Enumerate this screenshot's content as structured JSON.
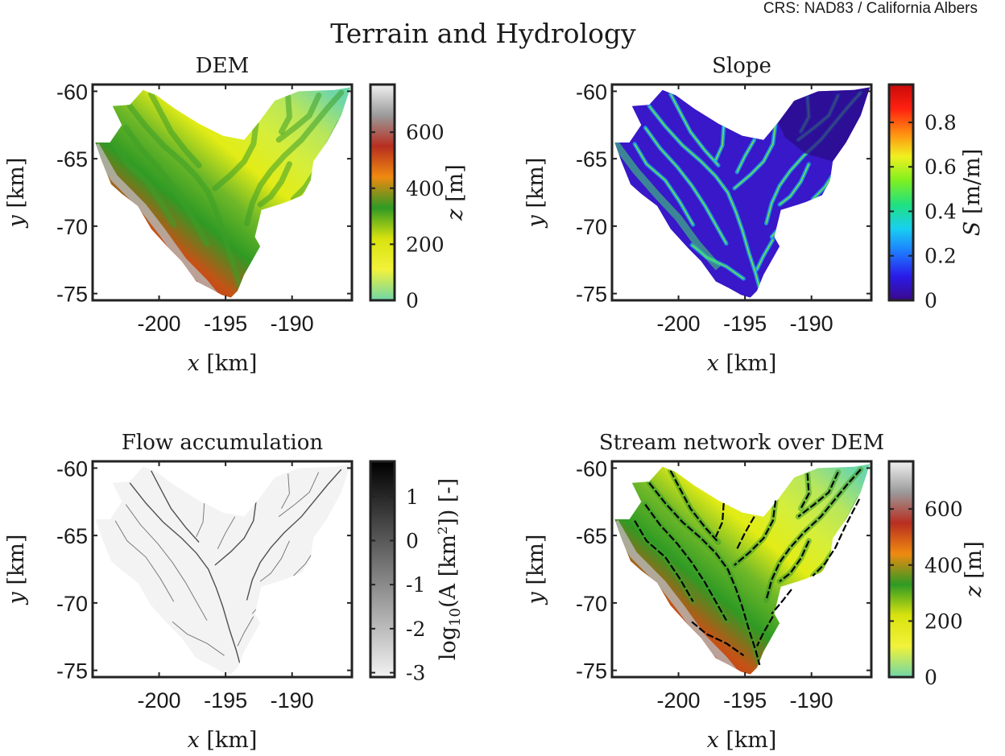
{
  "figure": {
    "crs_note": "CRS: NAD83 / California Albers",
    "suptitle": "Terrain and Hydrology"
  },
  "axes_labels": {
    "x_var": "x",
    "x_unit": "[km]",
    "y_var": "y",
    "y_unit": "[km]"
  },
  "colors": {
    "dem_colormap": [
      "#6fd6a8",
      "#f2f23a",
      "#d8e20e",
      "#2f9a24",
      "#ef8a10",
      "#b82e20",
      "#9a9a9a",
      "#f0f0f0"
    ],
    "slope_colormap": [
      "#3a0a8a",
      "#2a1ae8",
      "#1e78ff",
      "#18d0f0",
      "#20e080",
      "#80f020",
      "#f0f020",
      "#ff8a10",
      "#ff2010",
      "#c80a0a"
    ],
    "flow_colormap": [
      "#f2f2f2",
      "#000000"
    ],
    "stream_line": "#000000",
    "axes_frame": "#222222"
  },
  "chart_data": [
    {
      "type": "heatmap",
      "title": "DEM",
      "xlabel": "x [km]",
      "ylabel": "y [km]",
      "xlim": [
        -205,
        -185.5
      ],
      "ylim": [
        -75.5,
        -59.5
      ],
      "xticks": [
        -200,
        -195,
        -190
      ],
      "yticks": [
        -60,
        -65,
        -70,
        -75
      ],
      "colorbar": {
        "label_var": "z",
        "label_unit": "[m]",
        "range": [
          0,
          770
        ],
        "ticks": [
          0,
          200,
          400,
          600
        ],
        "tick_labels": [
          "0",
          "200",
          "400",
          "600"
        ]
      }
    },
    {
      "type": "heatmap",
      "title": "Slope",
      "xlabel": "x [km]",
      "ylabel": "y [km]",
      "xlim": [
        -205,
        -185.5
      ],
      "ylim": [
        -75.5,
        -59.5
      ],
      "xticks": [
        -200,
        -195,
        -190
      ],
      "yticks": [
        -60,
        -65,
        -70,
        -75
      ],
      "colorbar": {
        "label_var": "S",
        "label_unit": "[m/m]",
        "range": [
          0,
          0.97
        ],
        "ticks": [
          0,
          0.2,
          0.4,
          0.6,
          0.8
        ],
        "tick_labels": [
          "0",
          "0.2",
          "0.4",
          "0.6",
          "0.8"
        ]
      }
    },
    {
      "type": "heatmap",
      "title": "Flow accumulation",
      "xlabel": "x [km]",
      "ylabel": "y [km]",
      "xlim": [
        -205,
        -185.5
      ],
      "ylim": [
        -75.5,
        -59.5
      ],
      "xticks": [
        -200,
        -195,
        -190
      ],
      "yticks": [
        -60,
        -65,
        -70,
        -75
      ],
      "colorbar": {
        "label": "log10(A [km2]) [-]",
        "label_text": "log",
        "label_sub": "10",
        "label_mid": "(A [km",
        "label_sup": "2",
        "label_end": "]) [-]",
        "range": [
          -3.1,
          1.8
        ],
        "ticks": [
          -3,
          -2,
          -1,
          0,
          1
        ],
        "tick_labels": [
          "-3",
          "-2",
          "-1",
          "0",
          "1"
        ]
      }
    },
    {
      "type": "heatmap",
      "title": "Stream network over DEM",
      "xlabel": "x [km]",
      "ylabel": "y [km]",
      "xlim": [
        -205,
        -185.5
      ],
      "ylim": [
        -75.5,
        -59.5
      ],
      "xticks": [
        -200,
        -195,
        -190
      ],
      "yticks": [
        -60,
        -65,
        -70,
        -75
      ],
      "colorbar": {
        "label_var": "z",
        "label_unit": "[m]",
        "range": [
          0,
          770
        ],
        "ticks": [
          0,
          200,
          400,
          600
        ],
        "tick_labels": [
          "0",
          "200",
          "400",
          "600"
        ]
      }
    }
  ]
}
